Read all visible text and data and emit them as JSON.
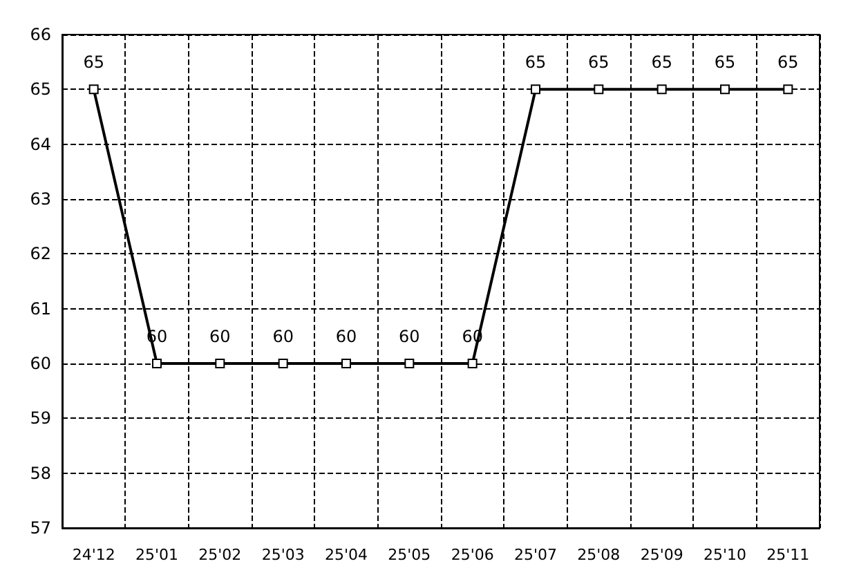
{
  "chart_data": {
    "type": "line",
    "categories": [
      "24'12",
      "25'01",
      "25'02",
      "25'03",
      "25'04",
      "25'05",
      "25'06",
      "25'07",
      "25'08",
      "25'09",
      "25'10",
      "25'11"
    ],
    "series": [
      {
        "color": "#000000",
        "values": [
          65,
          60,
          60,
          60,
          60,
          60,
          60,
          65,
          65,
          65,
          65,
          65
        ]
      }
    ],
    "ylim": [
      57,
      66
    ],
    "yticks": [
      57,
      58,
      59,
      60,
      61,
      62,
      63,
      64,
      65,
      66
    ],
    "grid": true,
    "marker": "square",
    "line_style": "solid",
    "data_labels": true
  }
}
